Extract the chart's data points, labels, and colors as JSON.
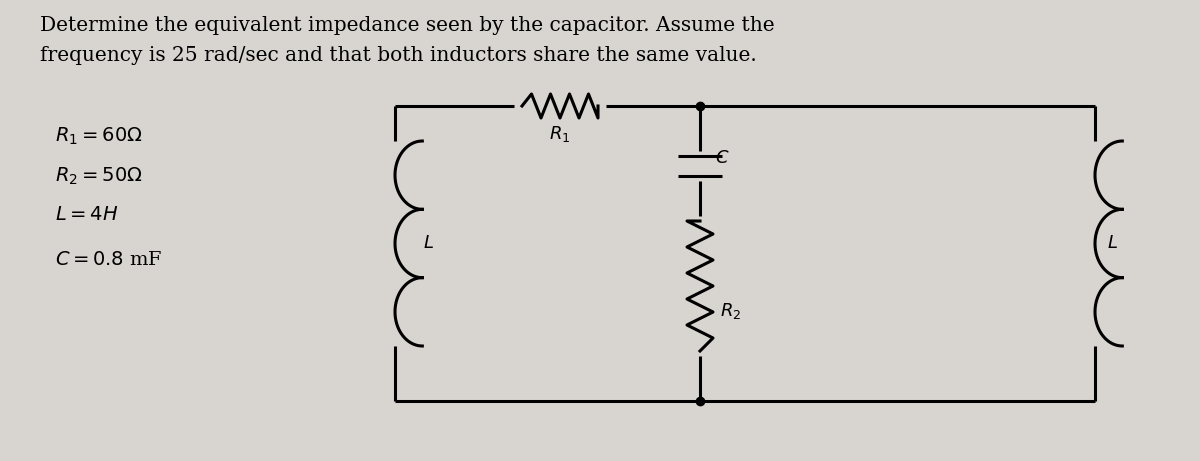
{
  "title_line1": "Determine the equivalent impedance seen by the capacitor. Assume the",
  "title_line2": "frequency is 25 rad/sec and that both inductors share the same value.",
  "params": [
    "$R_1 = 60\\Omega$",
    "$R_2 = 50\\Omega$",
    "$L = 4H$",
    "$C = 0.8$ mF"
  ],
  "bg_color": "#d8d4d0",
  "text_color": "#000000",
  "circuit_line_color": "#000000",
  "title_fontsize": 14.5,
  "param_fontsize": 14,
  "label_fontsize": 13
}
